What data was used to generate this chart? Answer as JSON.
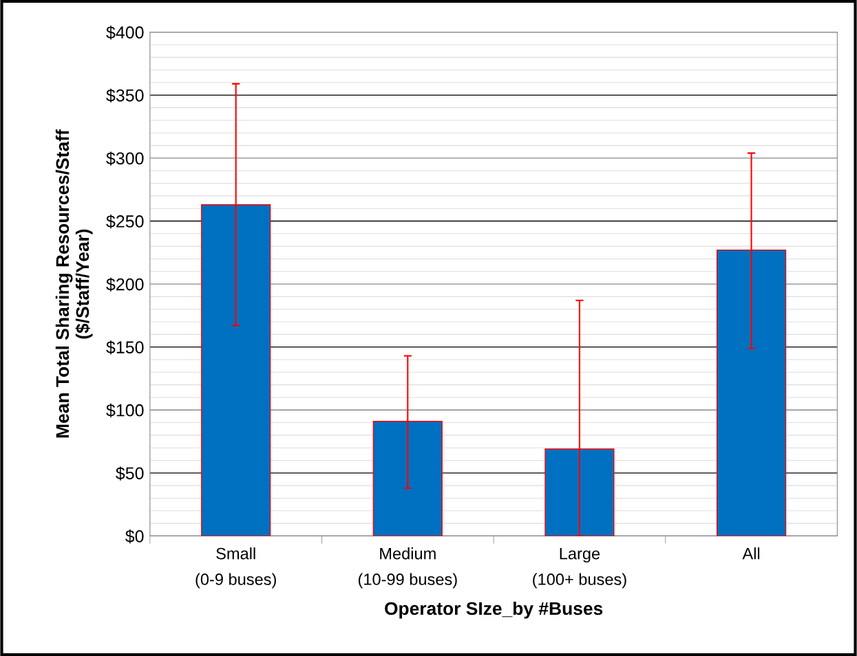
{
  "chart_data": {
    "type": "bar",
    "xlabel": "Operator SIze_by #Buses",
    "ylabel": "Mean Total Sharing Resources/Staff\n($/Staff/Year)",
    "categories": [
      "Small\n(0-9 buses)",
      "Medium\n(10-99 buses)",
      "Large\n(100+ buses)",
      "All"
    ],
    "values": [
      263,
      91,
      69,
      227
    ],
    "errors": [
      [
        167,
        359
      ],
      [
        38,
        143
      ],
      [
        0,
        187
      ],
      [
        149,
        304
      ]
    ],
    "color": "#0070c0",
    "ylim": [
      0,
      400
    ],
    "yticks": [
      {
        "value": 0,
        "label": "$0"
      },
      {
        "value": 50,
        "label": "$50"
      },
      {
        "value": 100,
        "label": "$100"
      },
      {
        "value": 150,
        "label": "$150"
      },
      {
        "value": 200,
        "label": "$200"
      },
      {
        "value": 250,
        "label": "$250"
      },
      {
        "value": 300,
        "label": "$300"
      },
      {
        "value": 350,
        "label": "$350"
      },
      {
        "value": 400,
        "label": "$400"
      }
    ],
    "grid": "y"
  }
}
